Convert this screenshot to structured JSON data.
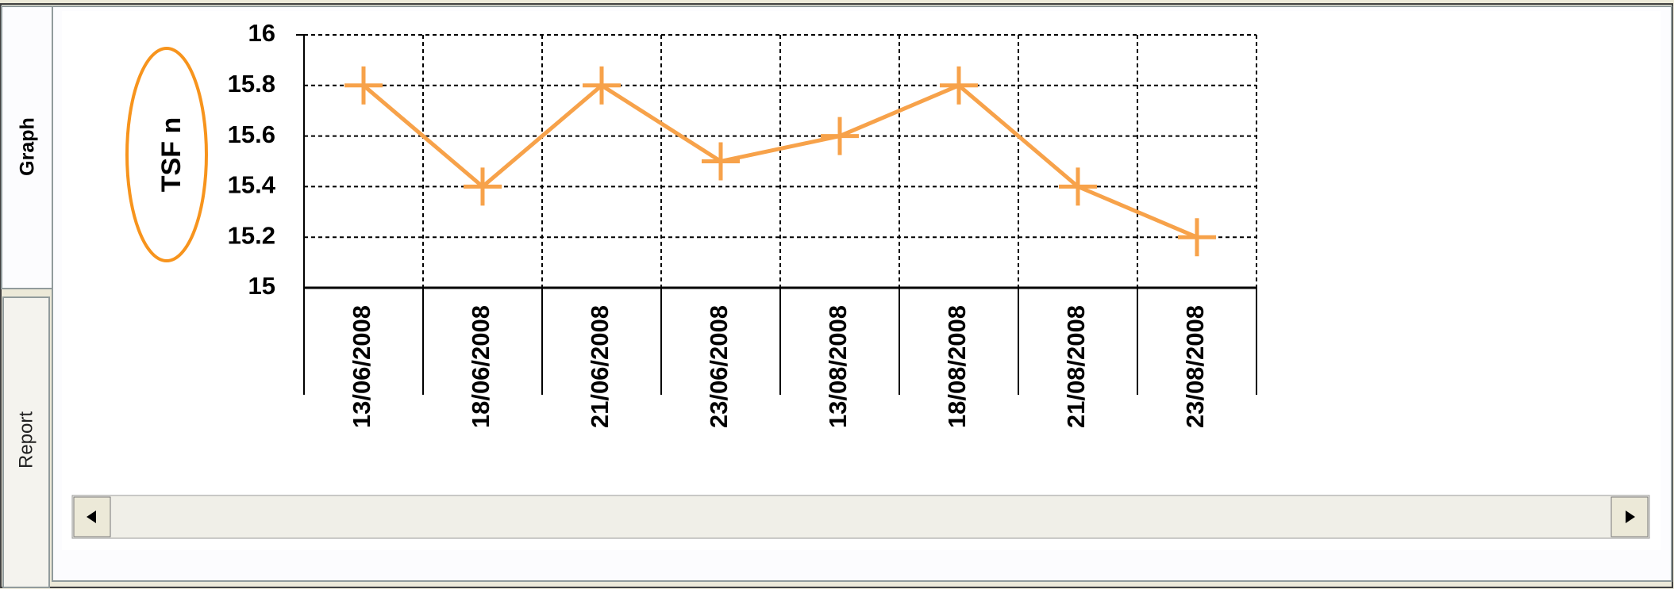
{
  "ui": {
    "tabs": [
      "Graph",
      "Report"
    ]
  },
  "chart_data": {
    "type": "line",
    "y_label": "TSF n",
    "categories": [
      "13/06/2008",
      "18/06/2008",
      "21/06/2008",
      "23/06/2008",
      "13/08/2008",
      "18/08/2008",
      "21/08/2008",
      "23/08/2008"
    ],
    "values": [
      15.8,
      15.4,
      15.8,
      15.5,
      15.6,
      15.8,
      15.4,
      15.2
    ],
    "color": "#f7a24a",
    "marker": "plus",
    "ylim": [
      15,
      16
    ],
    "yticks": [
      15,
      15.2,
      15.4,
      15.6,
      15.8,
      16
    ],
    "grid": true
  }
}
